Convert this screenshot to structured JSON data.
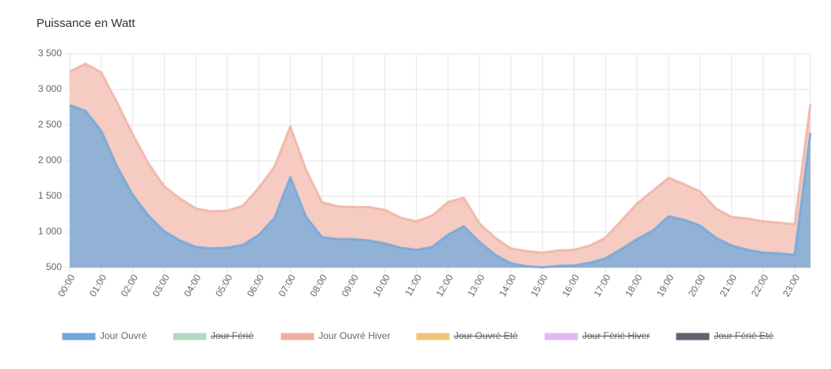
{
  "chart_data": {
    "type": "area",
    "title": "Puissance en Watt",
    "categories": [
      "00:00",
      null,
      "01:00",
      null,
      "02:00",
      null,
      "03:00",
      null,
      "04:00",
      null,
      "05:00",
      null,
      "06:00",
      null,
      "07:00",
      null,
      "08:00",
      null,
      "09:00",
      null,
      "10:00",
      null,
      "11:00",
      null,
      "12:00",
      null,
      "13:00",
      null,
      "14:00",
      null,
      "15:00",
      null,
      "16:00",
      null,
      "17:00",
      null,
      "18:00",
      null,
      "19:00",
      null,
      "20:00",
      null,
      "21:00",
      null,
      "22:00",
      null,
      "23:00",
      null
    ],
    "series": [
      {
        "name": "Jour Ouvré",
        "color": "#6fa8dc",
        "fill": "#8cb0d6",
        "values": [
          2780,
          2700,
          2420,
          1920,
          1520,
          1230,
          1010,
          880,
          790,
          770,
          780,
          820,
          960,
          1200,
          1770,
          1210,
          930,
          900,
          900,
          880,
          840,
          780,
          750,
          790,
          960,
          1080,
          860,
          680,
          560,
          520,
          505,
          525,
          530,
          570,
          630,
          760,
          900,
          1020,
          1220,
          1170,
          1090,
          920,
          810,
          750,
          710,
          700,
          680,
          2390
        ]
      },
      {
        "name": "Jour Férié",
        "color": "#b3d9c2",
        "hidden": true
      },
      {
        "name": "Jour Ouvré Hiver",
        "color": "#f0b0a0",
        "fill": "#f6c8be",
        "values": [
          3250,
          3360,
          3240,
          2820,
          2370,
          1960,
          1640,
          1470,
          1330,
          1290,
          1300,
          1370,
          1620,
          1920,
          2480,
          1870,
          1420,
          1360,
          1350,
          1350,
          1310,
          1200,
          1150,
          1230,
          1420,
          1480,
          1120,
          920,
          770,
          730,
          710,
          740,
          750,
          810,
          920,
          1160,
          1400,
          1580,
          1760,
          1670,
          1570,
          1330,
          1210,
          1190,
          1150,
          1130,
          1110,
          2790
        ]
      },
      {
        "name": "Jour Ouvré Eté",
        "color": "#f0c67c",
        "hidden": true
      },
      {
        "name": "Jour Férié Hiver",
        "color": "#e2b9f7",
        "hidden": true
      },
      {
        "name": "Jour Férié Eté",
        "color": "#5f6370",
        "hidden": true
      }
    ],
    "ylim": [
      500,
      3500
    ],
    "yticks": [
      500,
      {
        "value": 1000,
        "label": "1 000"
      },
      {
        "value": 1500,
        "label": "1 500"
      },
      {
        "value": 2000,
        "label": "2 000"
      },
      {
        "value": 2500,
        "label": "2 500"
      },
      {
        "value": 3000,
        "label": "3 000"
      },
      {
        "value": 3500,
        "label": "3 500"
      }
    ],
    "grid": true
  }
}
